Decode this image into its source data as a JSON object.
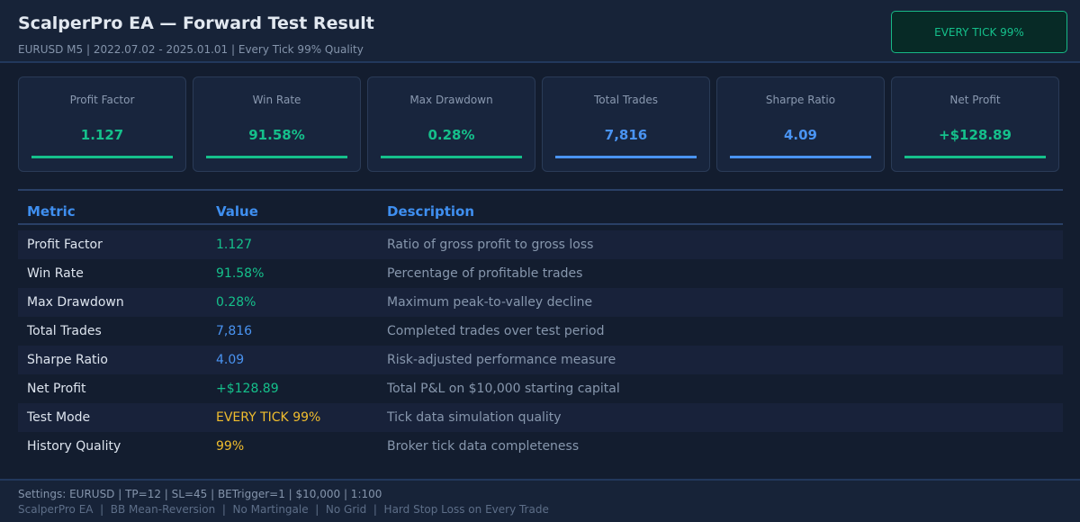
{
  "header": {
    "title": "ScalperPro EA — Forward Test Result",
    "subtitle": "EURUSD M5 | 2022.07.02 - 2025.01.01 | Every Tick 99% Quality",
    "badge": "EVERY TICK 99%"
  },
  "colors": {
    "green": "#15c08b",
    "blue": "#4a94f2",
    "yellow": "#f0bd2e"
  },
  "cards": [
    {
      "label": "Profit Factor",
      "value": "1.127",
      "accent": "#15c08b"
    },
    {
      "label": "Win Rate",
      "value": "91.58%",
      "accent": "#15c08b"
    },
    {
      "label": "Max Drawdown",
      "value": "0.28%",
      "accent": "#15c08b"
    },
    {
      "label": "Total Trades",
      "value": "7,816",
      "accent": "#4a94f2"
    },
    {
      "label": "Sharpe Ratio",
      "value": "4.09",
      "accent": "#4a94f2"
    },
    {
      "label": "Net Profit",
      "value": "+$128.89",
      "accent": "#15c08b"
    }
  ],
  "table": {
    "headers": [
      "Metric",
      "Value",
      "Description"
    ],
    "rows": [
      {
        "metric": "Profit Factor",
        "value": "1.127",
        "desc": "Ratio of gross profit to gross loss",
        "color": "#15c08b"
      },
      {
        "metric": "Win Rate",
        "value": "91.58%",
        "desc": "Percentage of profitable trades",
        "color": "#15c08b"
      },
      {
        "metric": "Max Drawdown",
        "value": "0.28%",
        "desc": "Maximum peak-to-valley decline",
        "color": "#15c08b"
      },
      {
        "metric": "Total Trades",
        "value": "7,816",
        "desc": "Completed trades over test period",
        "color": "#4a94f2"
      },
      {
        "metric": "Sharpe Ratio",
        "value": "4.09",
        "desc": "Risk-adjusted performance measure",
        "color": "#4a94f2"
      },
      {
        "metric": "Net Profit",
        "value": "+$128.89",
        "desc": "Total P&L on $10,000 starting capital",
        "color": "#15c08b"
      },
      {
        "metric": "Test Mode",
        "value": "EVERY TICK 99%",
        "desc": "Tick data simulation quality",
        "color": "#f0bd2e"
      },
      {
        "metric": "History Quality",
        "value": "99%",
        "desc": "Broker tick data completeness",
        "color": "#f0bd2e"
      }
    ]
  },
  "footer": {
    "settings": "Settings: EURUSD | TP=12 | SL=45 | BETrigger=1 | $10,000 | 1:100",
    "tags": "ScalperPro EA  |  BB Mean-Reversion  |  No Martingale  |  No Grid  |  Hard Stop Loss on Every Trade"
  }
}
